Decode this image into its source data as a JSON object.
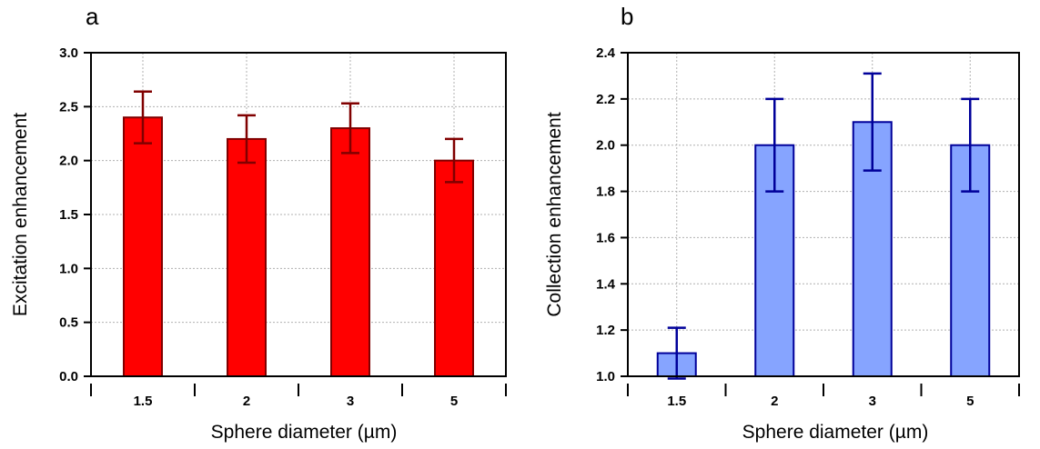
{
  "chart_data": [
    {
      "type": "bar",
      "panel": "a",
      "categories": [
        "1.5",
        "2",
        "3",
        "5"
      ],
      "values": [
        2.4,
        2.2,
        2.3,
        2.0
      ],
      "errors": [
        0.24,
        0.22,
        0.23,
        0.2
      ],
      "title": "",
      "xlabel": "Sphere diameter (µm)",
      "ylabel": "Excitation enhancement",
      "ylim": [
        0.0,
        3.0
      ],
      "yticks": [
        0.0,
        0.5,
        1.0,
        1.5,
        2.0,
        2.5,
        3.0
      ],
      "ytick_labels": [
        "0.0",
        "0.5",
        "1.0",
        "1.5",
        "2.0",
        "2.5",
        "3.0"
      ],
      "grid": true,
      "bar_color": "#ff0000",
      "edge_color": "#800000",
      "error_color": "#800000"
    },
    {
      "type": "bar",
      "panel": "b",
      "categories": [
        "1.5",
        "2",
        "3",
        "5"
      ],
      "values": [
        1.1,
        2.0,
        2.1,
        2.0
      ],
      "errors": [
        0.11,
        0.2,
        0.21,
        0.2
      ],
      "title": "",
      "xlabel": "Sphere diameter (µm)",
      "ylabel": "Collection enhancement",
      "ylim": [
        1.0,
        2.4
      ],
      "yticks": [
        1.0,
        1.2,
        1.4,
        1.6,
        1.8,
        2.0,
        2.2,
        2.4
      ],
      "ytick_labels": [
        "1.0",
        "1.2",
        "1.4",
        "1.6",
        "1.8",
        "2.0",
        "2.2",
        "2.4"
      ],
      "grid": true,
      "bar_color": "#86a4ff",
      "edge_color": "#00009a",
      "error_color": "#00009a"
    }
  ]
}
